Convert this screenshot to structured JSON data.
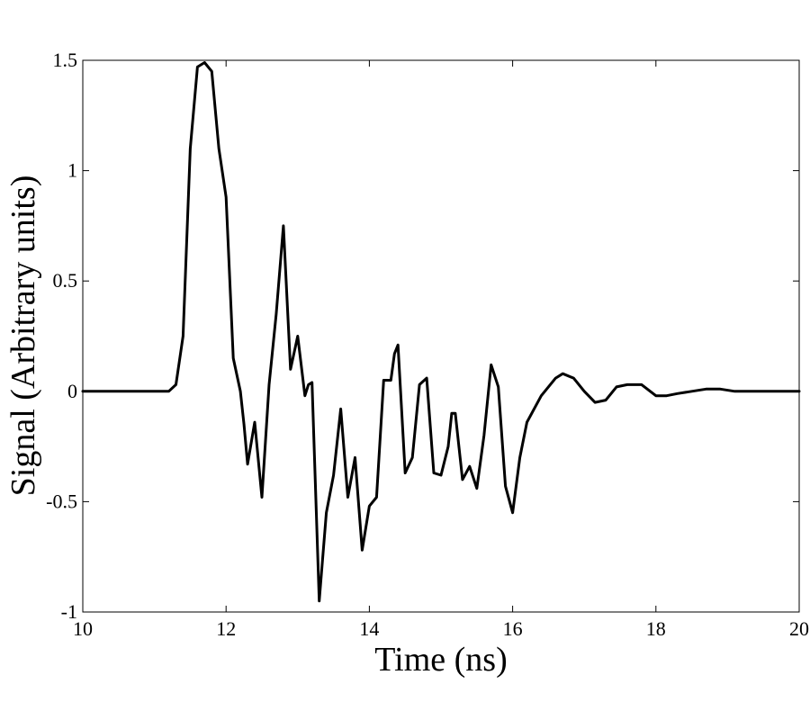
{
  "chart_data": {
    "type": "line",
    "xlabel": "Time (ns)",
    "ylabel": "Signal (Arbitrary units)",
    "xlim": [
      10,
      20
    ],
    "ylim": [
      -1,
      1.5
    ],
    "xticks": [
      10,
      12,
      14,
      16,
      18,
      20
    ],
    "xtick_labels": [
      "10",
      "12",
      "14",
      "16",
      "18",
      "20"
    ],
    "yticks": [
      -1,
      -0.5,
      0,
      0.5,
      1,
      1.5
    ],
    "ytick_labels": [
      "-1",
      "-0.5",
      "0",
      "0.5",
      "1",
      "1.5"
    ],
    "grid": false,
    "line_color": "#000000",
    "series": [
      {
        "x": [
          10.0,
          10.5,
          11.0,
          11.2,
          11.3,
          11.4,
          11.5,
          11.6,
          11.7,
          11.8,
          11.9,
          12.0,
          12.1,
          12.2,
          12.25,
          12.3,
          12.4,
          12.5,
          12.6,
          12.7,
          12.8,
          12.9,
          13.0,
          13.1,
          13.15,
          13.2,
          13.3,
          13.4,
          13.5,
          13.6,
          13.7,
          13.8,
          13.9,
          14.0,
          14.1,
          14.2,
          14.3,
          14.35,
          14.4,
          14.5,
          14.6,
          14.7,
          14.8,
          14.9,
          15.0,
          15.1,
          15.15,
          15.2,
          15.3,
          15.4,
          15.5,
          15.6,
          15.7,
          15.8,
          15.9,
          16.0,
          16.1,
          16.2,
          16.4,
          16.6,
          16.7,
          16.85,
          17.0,
          17.15,
          17.3,
          17.45,
          17.6,
          17.8,
          18.0,
          18.15,
          18.3,
          18.5,
          18.7,
          18.9,
          19.1,
          19.5,
          20.0
        ],
        "y": [
          0.0,
          0.0,
          0.0,
          0.0,
          0.03,
          0.25,
          1.1,
          1.47,
          1.49,
          1.45,
          1.1,
          0.88,
          0.15,
          0.0,
          -0.15,
          -0.33,
          -0.14,
          -0.48,
          0.03,
          0.35,
          0.75,
          0.1,
          0.25,
          -0.02,
          0.03,
          0.04,
          -0.95,
          -0.55,
          -0.38,
          -0.08,
          -0.48,
          -0.3,
          -0.72,
          -0.52,
          -0.48,
          0.05,
          0.05,
          0.17,
          0.21,
          -0.37,
          -0.3,
          0.03,
          0.06,
          -0.37,
          -0.38,
          -0.25,
          -0.1,
          -0.1,
          -0.4,
          -0.34,
          -0.44,
          -0.2,
          0.12,
          0.02,
          -0.43,
          -0.55,
          -0.3,
          -0.14,
          -0.02,
          0.06,
          0.08,
          0.06,
          0.0,
          -0.05,
          -0.04,
          0.02,
          0.03,
          0.03,
          -0.02,
          -0.02,
          -0.01,
          0.0,
          0.01,
          0.01,
          0.0,
          0.0,
          0.0
        ]
      }
    ]
  }
}
